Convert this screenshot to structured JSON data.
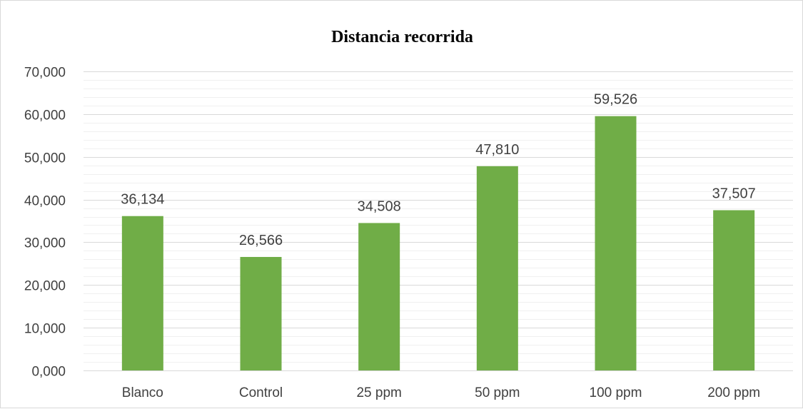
{
  "chart_data": {
    "type": "bar",
    "title": "Distancia recorrida",
    "xlabel": "",
    "ylabel": "",
    "categories": [
      "Blanco",
      "Control",
      "25 ppm",
      "50 ppm",
      "100 ppm",
      "200 ppm"
    ],
    "values": [
      36.134,
      26.566,
      34.508,
      47.81,
      59.526,
      37.507
    ],
    "data_labels": [
      "36,134",
      "26,566",
      "34,508",
      "47,810",
      "59,526",
      "37,507"
    ],
    "ylim": [
      0,
      70
    ],
    "y_major_step": 10,
    "y_minor_step": 2,
    "y_tick_labels": [
      "0,000",
      "10,000",
      "20,000",
      "30,000",
      "40,000",
      "50,000",
      "60,000",
      "70,000"
    ],
    "grid": true,
    "legend": "none",
    "bar_color": "#70ad47",
    "major_grid_color": "#d9d9d9",
    "minor_grid_color": "#f0f0f0"
  }
}
